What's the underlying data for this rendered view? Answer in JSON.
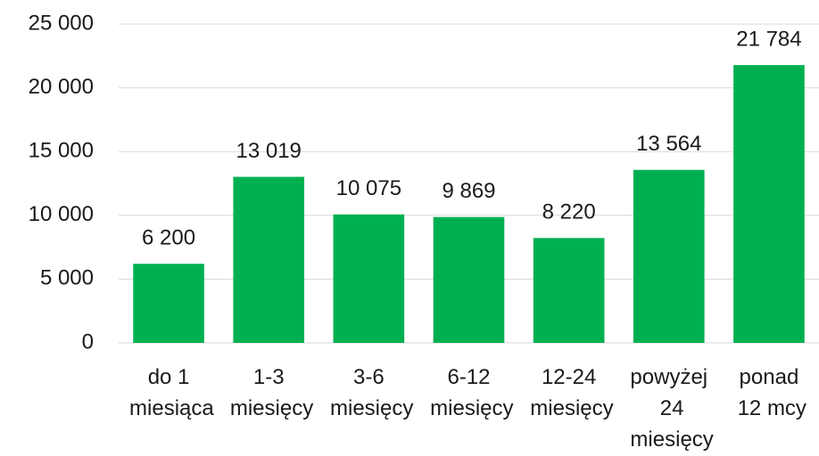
{
  "chart_data": {
    "type": "bar",
    "categories": [
      "do 1 miesiąca",
      "1-3 miesięcy",
      "3-6 miesięcy",
      "6-12 miesięcy",
      "12-24 miesięcy",
      "powyżej 24 miesięcy",
      "ponad 12 mcy"
    ],
    "values": [
      6200,
      13019,
      10075,
      9869,
      8220,
      13564,
      21784
    ],
    "value_labels": [
      "6 200",
      "13 019",
      "10 075",
      "9 869",
      "8 220",
      "13 564",
      "21 784"
    ],
    "color": "#00b050",
    "ylim": [
      0,
      25000
    ],
    "yticks": [
      0,
      {
        "value": 5000,
        "label": "5 000"
      },
      {
        "value": 10000,
        "label": "10 000"
      },
      {
        "value": 15000,
        "label": "15 000"
      },
      {
        "value": 20000,
        "label": "20 000"
      },
      {
        "value": 25000,
        "label": "25 000"
      }
    ],
    "grid": true
  }
}
